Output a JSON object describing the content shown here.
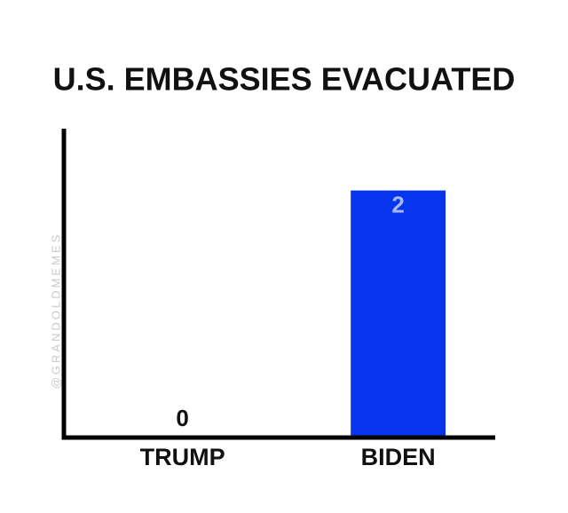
{
  "chart_data": {
    "type": "bar",
    "title": "U.S. EMBASSIES EVACUATED",
    "categories": [
      "TRUMP",
      "BIDEN"
    ],
    "values": [
      0,
      2
    ],
    "color": "#0735ee",
    "ylim": [
      0,
      2.5
    ],
    "watermark": "@GRANDOLDMEMES"
  }
}
